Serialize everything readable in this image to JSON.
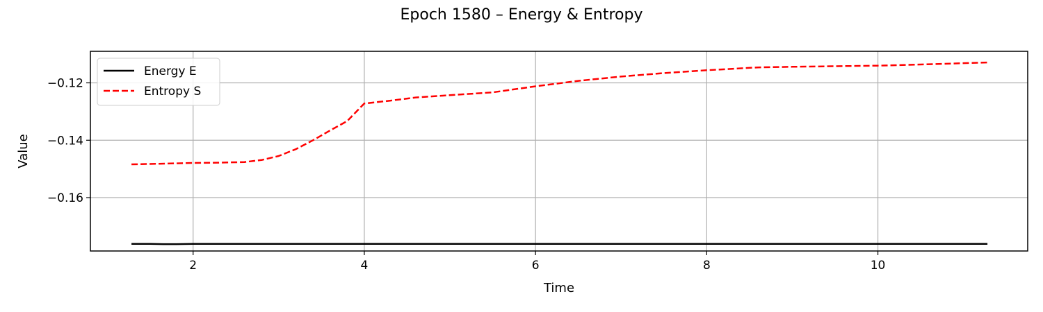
{
  "chart_data": {
    "type": "line",
    "title": "Epoch 1580 – Energy & Entropy",
    "xlabel": "Time",
    "ylabel": "Value",
    "xlim": [
      0.8,
      11.75
    ],
    "ylim": [
      -0.1786,
      -0.109
    ],
    "xticks": [
      2,
      4,
      6,
      8,
      10
    ],
    "xtick_labels": [
      "2",
      "4",
      "6",
      "8",
      "10"
    ],
    "yticks": [
      -0.12,
      -0.14,
      -0.16
    ],
    "ytick_labels": [
      "−0.12",
      "−0.14",
      "−0.16"
    ],
    "grid": true,
    "legend_position": "top-left",
    "series": [
      {
        "name": "Energy E",
        "color": "#000000",
        "style": "solid",
        "x": [
          1.28,
          1.5,
          1.65,
          1.8,
          2.0,
          2.5,
          3.0,
          4.0,
          5.0,
          6.0,
          7.0,
          8.0,
          9.0,
          10.0,
          11.28
        ],
        "y": [
          -0.1761,
          -0.1761,
          -0.1762,
          -0.1762,
          -0.1761,
          -0.1761,
          -0.1761,
          -0.1761,
          -0.1761,
          -0.1761,
          -0.1761,
          -0.1761,
          -0.1761,
          -0.1761,
          -0.1761
        ]
      },
      {
        "name": "Entropy S",
        "color": "#ff0000",
        "style": "dashed",
        "x": [
          1.28,
          1.6,
          2.0,
          2.3,
          2.6,
          2.8,
          3.0,
          3.2,
          3.4,
          3.6,
          3.8,
          4.0,
          4.3,
          4.6,
          5.0,
          5.5,
          6.0,
          6.5,
          7.0,
          7.5,
          8.0,
          8.6,
          9.0,
          9.5,
          10.0,
          10.5,
          11.28
        ],
        "y": [
          -0.1484,
          -0.1482,
          -0.1479,
          -0.1478,
          -0.1476,
          -0.1469,
          -0.1455,
          -0.1431,
          -0.14,
          -0.1366,
          -0.1333,
          -0.1272,
          -0.1262,
          -0.1251,
          -0.1243,
          -0.1233,
          -0.1212,
          -0.1193,
          -0.1178,
          -0.1166,
          -0.1156,
          -0.1146,
          -0.1144,
          -0.1142,
          -0.114,
          -0.1136,
          -0.1129
        ]
      }
    ]
  }
}
